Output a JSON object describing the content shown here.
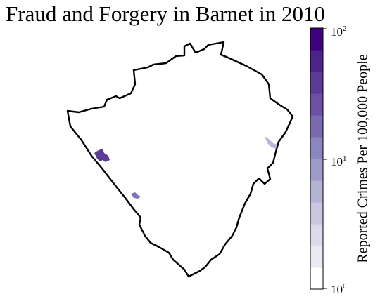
{
  "title": "Fraud and Forgery in Barnet in 2010",
  "colorbar": {
    "label": "Reported Crimes Per 100,000 People",
    "scale": "log",
    "range": [
      1,
      100
    ],
    "ticks": [
      {
        "base": "10",
        "exp": "2"
      },
      {
        "base": "10",
        "exp": "1"
      },
      {
        "base": "10",
        "exp": "0"
      }
    ],
    "colors": [
      "#ffffff",
      "#ece9f3",
      "#dcdaeb",
      "#c8c6e1",
      "#b4b3d6",
      "#9f9bc9",
      "#8b86bd",
      "#7a6bb0",
      "#6a51a3",
      "#5b3b97",
      "#4b238a",
      "#3f007d"
    ]
  },
  "chart_data": {
    "type": "choropleth",
    "region": "Barnet",
    "year": 2010,
    "highlighted_areas": [
      {
        "location": "west",
        "value": 60
      },
      {
        "location": "south-west",
        "value": 20
      },
      {
        "location": "east",
        "value": 4
      }
    ]
  }
}
